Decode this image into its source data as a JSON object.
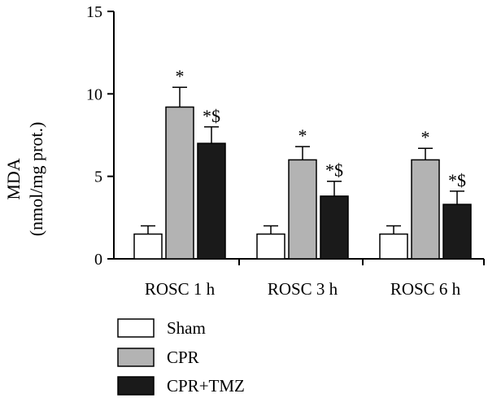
{
  "chart_data": {
    "type": "bar",
    "title": "",
    "ylabel_lines": [
      "MDA",
      "(nmol/mg prot.)"
    ],
    "xlabel": "",
    "ylim": [
      0,
      15
    ],
    "yticks": [
      0,
      5,
      10,
      15
    ],
    "categories": [
      "ROSC 1 h",
      "ROSC 3 h",
      "ROSC 6 h"
    ],
    "series": [
      {
        "name": "Sham",
        "color": "#ffffff",
        "values": [
          1.5,
          1.5,
          1.5
        ],
        "errors": [
          0.5,
          0.5,
          0.5
        ],
        "marks": [
          "",
          "",
          ""
        ]
      },
      {
        "name": "CPR",
        "color": "#b3b3b3",
        "values": [
          9.2,
          6.0,
          6.0
        ],
        "errors": [
          1.2,
          0.8,
          0.7
        ],
        "marks": [
          "*",
          "*",
          "*"
        ]
      },
      {
        "name": "CPR+TMZ",
        "color": "#1a1a1a",
        "values": [
          7.0,
          3.8,
          3.3
        ],
        "errors": [
          1.0,
          0.9,
          0.8
        ],
        "marks": [
          "*$",
          "*$",
          "*$"
        ]
      }
    ],
    "legend_position": "bottom-left",
    "grid": false
  }
}
